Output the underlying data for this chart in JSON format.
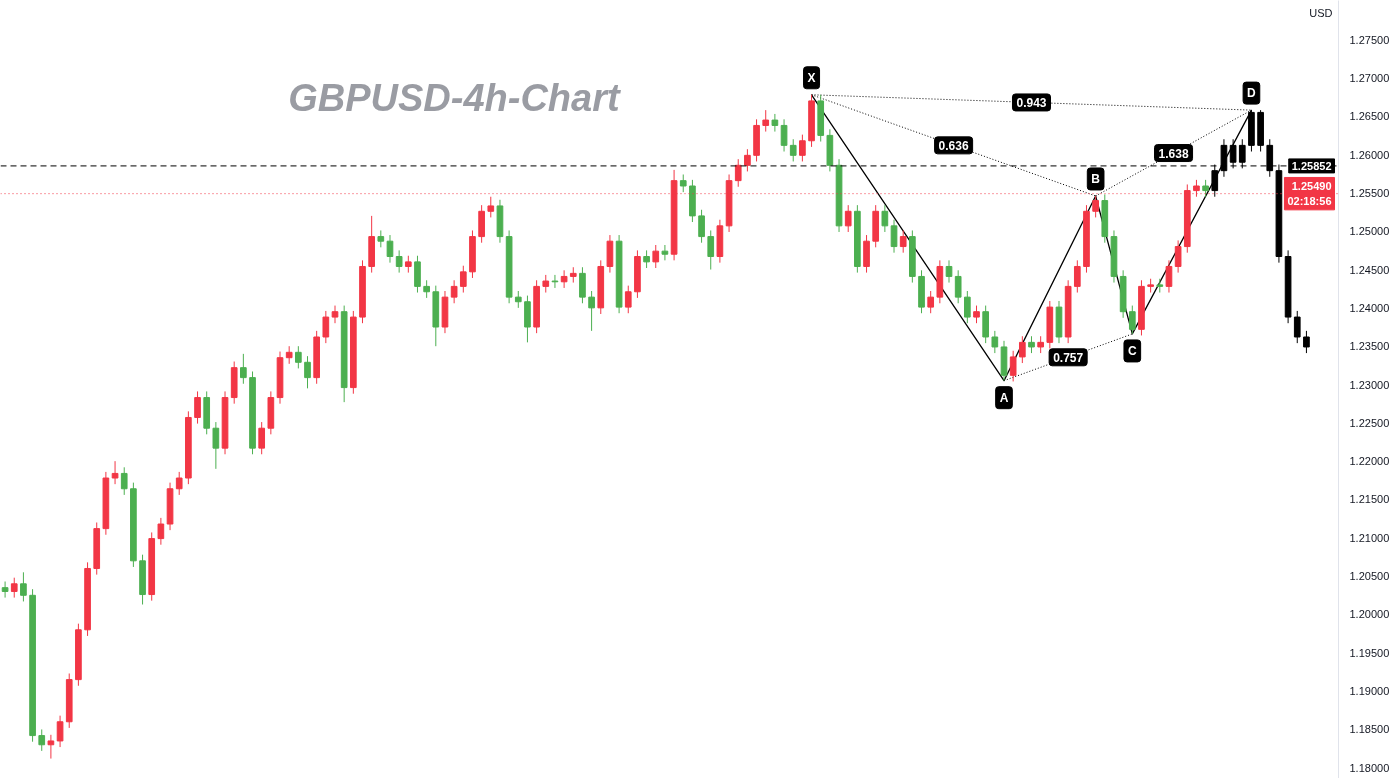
{
  "chart_data": {
    "type": "candlestick",
    "title": "GBPUSD-4h-Chart",
    "ylabel": "USD",
    "tick_labels": "y",
    "categories": [
      null,
      null,
      null,
      null,
      null,
      null,
      null,
      null,
      null,
      null,
      null,
      null,
      null,
      null,
      null,
      null,
      null,
      null,
      null,
      null,
      null,
      null,
      null,
      null,
      null,
      null,
      null,
      null,
      null,
      null,
      null,
      null,
      null,
      null,
      null,
      null,
      null,
      null,
      null,
      null,
      null,
      null,
      null,
      null,
      null,
      null,
      null,
      null,
      null,
      null,
      null,
      null,
      null,
      null,
      null,
      null,
      null,
      null,
      null,
      null,
      null,
      null,
      null,
      null,
      null,
      null,
      null,
      null,
      null,
      null,
      null,
      null,
      null,
      null,
      null,
      null,
      null,
      null,
      null,
      null,
      null,
      null,
      null,
      null,
      null,
      null,
      null,
      null,
      null,
      null,
      null,
      null,
      null,
      null,
      null,
      null,
      null,
      null,
      null,
      null,
      null,
      null,
      null,
      null,
      null,
      null,
      null,
      null,
      null,
      null,
      null,
      null,
      null,
      null,
      null,
      null,
      null,
      null,
      null,
      null,
      null,
      null,
      null,
      null,
      null,
      null,
      null,
      null,
      null,
      null,
      null,
      null,
      null,
      null,
      null,
      null,
      null,
      null,
      null,
      null,
      null,
      null,
      null,
      null,
      null,
      null
    ],
    "ohlc": [
      [
        1.2035,
        1.2043,
        1.2022,
        1.203
      ],
      [
        1.203,
        1.2048,
        1.2022,
        1.204
      ],
      [
        1.204,
        1.2055,
        1.2017,
        1.2025
      ],
      [
        1.2025,
        1.2033,
        1.1834,
        1.1842
      ],
      [
        1.1842,
        1.185,
        1.1822,
        1.183
      ],
      [
        1.183,
        1.1843,
        1.1812,
        1.1835
      ],
      [
        1.1835,
        1.1868,
        1.1827,
        1.186
      ],
      [
        1.186,
        1.1923,
        1.1852,
        1.1915
      ],
      [
        1.1915,
        1.1988,
        1.1907,
        1.198
      ],
      [
        1.198,
        1.2068,
        1.1972,
        1.206
      ],
      [
        1.206,
        1.212,
        1.2052,
        1.2112
      ],
      [
        1.2112,
        1.2186,
        1.2104,
        1.2178
      ],
      [
        1.2178,
        1.22,
        1.217,
        1.2184
      ],
      [
        1.2184,
        1.2192,
        1.2156,
        1.2164
      ],
      [
        1.2164,
        1.2172,
        1.2062,
        1.207
      ],
      [
        1.207,
        1.2078,
        1.2013,
        1.2026
      ],
      [
        1.2026,
        1.2107,
        1.2018,
        1.2099
      ],
      [
        1.2099,
        1.2126,
        1.2091,
        1.2118
      ],
      [
        1.2118,
        1.2172,
        1.211,
        1.2164
      ],
      [
        1.2164,
        1.2186,
        1.2156,
        1.2178
      ],
      [
        1.2178,
        1.2265,
        1.217,
        1.2257
      ],
      [
        1.2257,
        1.2291,
        1.2249,
        1.2283
      ],
      [
        1.2283,
        1.2291,
        1.2235,
        1.2243
      ],
      [
        1.2243,
        1.2251,
        1.219,
        1.2217
      ],
      [
        1.2217,
        1.2291,
        1.2209,
        1.2283
      ],
      [
        1.2283,
        1.233,
        1.2275,
        1.2322
      ],
      [
        1.2322,
        1.234,
        1.2301,
        1.2309
      ],
      [
        1.2309,
        1.2317,
        1.2209,
        1.2217
      ],
      [
        1.2217,
        1.2251,
        1.2209,
        1.2243
      ],
      [
        1.2243,
        1.2291,
        1.2235,
        1.2283
      ],
      [
        1.2283,
        1.2343,
        1.2275,
        1.2335
      ],
      [
        1.2335,
        1.235,
        1.2327,
        1.2342
      ],
      [
        1.2342,
        1.235,
        1.2321,
        1.2329
      ],
      [
        1.2329,
        1.2337,
        1.2295,
        1.2309
      ],
      [
        1.2309,
        1.237,
        1.2301,
        1.2362
      ],
      [
        1.2362,
        1.2396,
        1.2354,
        1.2388
      ],
      [
        1.2388,
        1.2403,
        1.238,
        1.2395
      ],
      [
        1.2395,
        1.2403,
        1.2277,
        1.2296
      ],
      [
        1.2296,
        1.2396,
        1.2288,
        1.2388
      ],
      [
        1.2388,
        1.2462,
        1.238,
        1.2454
      ],
      [
        1.2454,
        1.252,
        1.2446,
        1.2493
      ],
      [
        1.2493,
        1.2501,
        1.2479,
        1.2487
      ],
      [
        1.2487,
        1.2495,
        1.2459,
        1.2467
      ],
      [
        1.2467,
        1.2475,
        1.2446,
        1.2454
      ],
      [
        1.2454,
        1.2468,
        1.2446,
        1.246
      ],
      [
        1.246,
        1.2468,
        1.242,
        1.2428
      ],
      [
        1.2428,
        1.2436,
        1.2413,
        1.2421
      ],
      [
        1.2421,
        1.2429,
        1.235,
        1.2375
      ],
      [
        1.2375,
        1.2422,
        1.2367,
        1.2414
      ],
      [
        1.2414,
        1.2436,
        1.2406,
        1.2428
      ],
      [
        1.2428,
        1.2455,
        1.242,
        1.2447
      ],
      [
        1.2447,
        1.2501,
        1.2439,
        1.2493
      ],
      [
        1.2493,
        1.2534,
        1.2485,
        1.2526
      ],
      [
        1.2526,
        1.2545,
        1.2518,
        1.2533
      ],
      [
        1.2533,
        1.2541,
        1.2485,
        1.2493
      ],
      [
        1.2493,
        1.2501,
        1.2406,
        1.2414
      ],
      [
        1.2414,
        1.2422,
        1.24,
        1.2408
      ],
      [
        1.2408,
        1.2416,
        1.2355,
        1.2375
      ],
      [
        1.2375,
        1.2436,
        1.2367,
        1.2428
      ],
      [
        1.2428,
        1.2443,
        1.242,
        1.2435
      ],
      [
        1.2435,
        1.2443,
        1.2426,
        1.2434
      ],
      [
        1.2434,
        1.2449,
        1.2426,
        1.2441
      ],
      [
        1.2441,
        1.2453,
        1.2433,
        1.2445
      ],
      [
        1.2445,
        1.2453,
        1.2406,
        1.2414
      ],
      [
        1.2414,
        1.2422,
        1.237,
        1.24
      ],
      [
        1.24,
        1.2462,
        1.2392,
        1.2454
      ],
      [
        1.2454,
        1.2495,
        1.2446,
        1.2487
      ],
      [
        1.2487,
        1.2495,
        1.2393,
        1.2401
      ],
      [
        1.2401,
        1.2429,
        1.2393,
        1.2421
      ],
      [
        1.2421,
        1.2475,
        1.2413,
        1.2467
      ],
      [
        1.2467,
        1.2475,
        1.2452,
        1.246
      ],
      [
        1.246,
        1.2482,
        1.2452,
        1.2474
      ],
      [
        1.2474,
        1.2482,
        1.2462,
        1.247
      ],
      [
        1.247,
        1.258,
        1.2462,
        1.2566
      ],
      [
        1.2566,
        1.2574,
        1.2551,
        1.2559
      ],
      [
        1.2559,
        1.2567,
        1.2512,
        1.252
      ],
      [
        1.252,
        1.2528,
        1.2485,
        1.2493
      ],
      [
        1.2493,
        1.2501,
        1.245,
        1.2467
      ],
      [
        1.2467,
        1.2515,
        1.2459,
        1.2507
      ],
      [
        1.2507,
        1.2574,
        1.2499,
        1.2566
      ],
      [
        1.2566,
        1.2594,
        1.2558,
        1.2586
      ],
      [
        1.2586,
        1.2607,
        1.2578,
        1.2599
      ],
      [
        1.2599,
        1.2646,
        1.2591,
        1.2638
      ],
      [
        1.2638,
        1.2658,
        1.263,
        1.2645
      ],
      [
        1.2645,
        1.2653,
        1.263,
        1.2638
      ],
      [
        1.2638,
        1.2646,
        1.2604,
        1.2612
      ],
      [
        1.2612,
        1.262,
        1.2591,
        1.2599
      ],
      [
        1.2599,
        1.2626,
        1.2591,
        1.2618
      ],
      [
        1.2618,
        1.2678,
        1.261,
        1.267
      ],
      [
        1.267,
        1.2678,
        1.2617,
        1.2625
      ],
      [
        1.2625,
        1.2633,
        1.2578,
        1.2586
      ],
      [
        1.2586,
        1.2594,
        1.2499,
        1.2507
      ],
      [
        1.2507,
        1.2534,
        1.2499,
        1.2526
      ],
      [
        1.2526,
        1.2534,
        1.2446,
        1.2454
      ],
      [
        1.2454,
        1.2495,
        1.2446,
        1.2487
      ],
      [
        1.2487,
        1.2534,
        1.2479,
        1.2526
      ],
      [
        1.2526,
        1.2534,
        1.2499,
        1.2507
      ],
      [
        1.2507,
        1.2515,
        1.2472,
        1.248
      ],
      [
        1.248,
        1.2501,
        1.2472,
        1.2493
      ],
      [
        1.2493,
        1.2501,
        1.2433,
        1.2441
      ],
      [
        1.2441,
        1.2449,
        1.2393,
        1.2401
      ],
      [
        1.2401,
        1.2422,
        1.2393,
        1.2414
      ],
      [
        1.2414,
        1.2462,
        1.2406,
        1.2454
      ],
      [
        1.2454,
        1.2462,
        1.2433,
        1.2441
      ],
      [
        1.2441,
        1.2449,
        1.2406,
        1.2414
      ],
      [
        1.2414,
        1.2422,
        1.238,
        1.2388
      ],
      [
        1.2388,
        1.2403,
        1.238,
        1.2395
      ],
      [
        1.2395,
        1.2403,
        1.2354,
        1.2362
      ],
      [
        1.2362,
        1.237,
        1.2341,
        1.2349
      ],
      [
        1.2349,
        1.2357,
        1.2305,
        1.2312
      ],
      [
        1.2312,
        1.2344,
        1.2304,
        1.2336
      ],
      [
        1.2336,
        1.2363,
        1.2328,
        1.2355
      ],
      [
        1.2355,
        1.2363,
        1.2341,
        1.2349
      ],
      [
        1.2349,
        1.2363,
        1.2341,
        1.2355
      ],
      [
        1.2355,
        1.2409,
        1.2347,
        1.2401
      ],
      [
        1.2401,
        1.2409,
        1.2354,
        1.2362
      ],
      [
        1.2362,
        1.2436,
        1.2354,
        1.2428
      ],
      [
        1.2428,
        1.2462,
        1.242,
        1.2454
      ],
      [
        1.2454,
        1.2534,
        1.2446,
        1.2526
      ],
      [
        1.2526,
        1.2546,
        1.2518,
        1.254
      ],
      [
        1.254,
        1.2548,
        1.2485,
        1.2493
      ],
      [
        1.2493,
        1.2501,
        1.2433,
        1.2441
      ],
      [
        1.2441,
        1.2449,
        1.2387,
        1.2395
      ],
      [
        1.2395,
        1.2403,
        1.2366,
        1.2372
      ],
      [
        1.2372,
        1.2436,
        1.2364,
        1.2428
      ],
      [
        1.2428,
        1.2438,
        1.242,
        1.243
      ],
      [
        1.243,
        1.2438,
        1.242,
        1.2428
      ],
      [
        1.2428,
        1.2462,
        1.242,
        1.2454
      ],
      [
        1.2454,
        1.2488,
        1.2446,
        1.248
      ],
      [
        1.248,
        1.2561,
        1.2472,
        1.2553
      ],
      [
        1.2553,
        1.2567,
        1.2545,
        1.2559
      ],
      [
        1.2559,
        1.2567,
        1.2545,
        1.2553
      ],
      [
        1.2553,
        1.2587,
        1.2545,
        1.2579
      ],
      [
        1.2579,
        1.262,
        1.2571,
        1.2612
      ],
      [
        1.2612,
        1.262,
        1.2582,
        1.259
      ],
      [
        1.259,
        1.262,
        1.2582,
        1.2612
      ],
      [
        1.2612,
        1.2658,
        1.2604,
        1.2655
      ],
      [
        1.2655,
        1.2658,
        1.2604,
        1.2612
      ],
      [
        1.2612,
        1.262,
        1.2571,
        1.2579
      ],
      [
        1.2579,
        1.2587,
        1.2459,
        1.2467
      ],
      [
        1.2467,
        1.2475,
        1.238,
        1.2388
      ],
      [
        1.2388,
        1.2396,
        1.2354,
        1.2362
      ],
      [
        1.2362,
        1.237,
        1.2341,
        1.2349
      ],
      null,
      null,
      null
    ],
    "colors": [
      "#4caf50",
      "#f23645",
      "#4caf50",
      "#4caf50",
      "#4caf50",
      "#f23645",
      "#f23645",
      "#f23645",
      "#f23645",
      "#f23645",
      "#f23645",
      "#f23645",
      "#f23645",
      "#4caf50",
      "#4caf50",
      "#4caf50",
      "#f23645",
      "#f23645",
      "#f23645",
      "#f23645",
      "#f23645",
      "#f23645",
      "#4caf50",
      "#4caf50",
      "#f23645",
      "#f23645",
      "#4caf50",
      "#4caf50",
      "#f23645",
      "#f23645",
      "#f23645",
      "#f23645",
      "#4caf50",
      "#4caf50",
      "#f23645",
      "#f23645",
      "#f23645",
      "#4caf50",
      "#f23645",
      "#f23645",
      "#f23645",
      "#4caf50",
      "#4caf50",
      "#4caf50",
      "#f23645",
      "#4caf50",
      "#4caf50",
      "#4caf50",
      "#f23645",
      "#f23645",
      "#f23645",
      "#f23645",
      "#f23645",
      "#f23645",
      "#4caf50",
      "#4caf50",
      "#4caf50",
      "#4caf50",
      "#f23645",
      "#f23645",
      "#4caf50",
      "#f23645",
      "#f23645",
      "#4caf50",
      "#4caf50",
      "#f23645",
      "#f23645",
      "#4caf50",
      "#f23645",
      "#f23645",
      "#4caf50",
      "#f23645",
      "#4caf50",
      "#f23645",
      "#4caf50",
      "#4caf50",
      "#4caf50",
      "#4caf50",
      "#f23645",
      "#f23645",
      "#f23645",
      "#f23645",
      "#f23645",
      "#f23645",
      "#4caf50",
      "#4caf50",
      "#4caf50",
      "#f23645",
      "#f23645",
      "#4caf50",
      "#4caf50",
      "#4caf50",
      "#f23645",
      "#4caf50",
      "#f23645",
      "#f23645",
      "#4caf50",
      "#4caf50",
      "#f23645",
      "#4caf50",
      "#4caf50",
      "#f23645",
      "#f23645",
      "#4caf50",
      "#4caf50",
      "#4caf50",
      "#f23645",
      "#4caf50",
      "#4caf50",
      "#4caf50",
      "#f23645",
      "#f23645",
      "#4caf50",
      "#f23645",
      "#f23645",
      "#4caf50",
      "#f23645",
      "#f23645",
      "#f23645",
      "#f23645",
      "#4caf50",
      "#4caf50",
      "#4caf50",
      "#4caf50",
      "#f23645",
      "#f23645",
      "#4caf50",
      "#f23645",
      "#f23645",
      "#f23645",
      "#f23645",
      "#4caf50",
      "#000000",
      "#000000",
      "#000000",
      "#000000",
      "#000000",
      "#000000",
      "#000000",
      "#000000",
      "#000000",
      "#000000",
      "#000000",
      null,
      null,
      null
    ],
    "ylim": [
      1.1786,
      1.2801
    ],
    "yticks": [
      {
        "value": 1.18,
        "label": "1.18000"
      },
      {
        "value": 1.185,
        "label": "1.18500"
      },
      {
        "value": 1.19,
        "label": "1.19000"
      },
      {
        "value": 1.195,
        "label": "1.19500"
      },
      {
        "value": 1.2,
        "label": "1.20000"
      },
      {
        "value": 1.205,
        "label": "1.20500"
      },
      {
        "value": 1.21,
        "label": "1.21000"
      },
      {
        "value": 1.215,
        "label": "1.21500"
      },
      {
        "value": 1.22,
        "label": "1.22000"
      },
      {
        "value": 1.225,
        "label": "1.22500"
      },
      {
        "value": 1.23,
        "label": "1.23000"
      },
      {
        "value": 1.235,
        "label": "1.23500"
      },
      {
        "value": 1.24,
        "label": "1.24000"
      },
      {
        "value": 1.245,
        "label": "1.24500"
      },
      {
        "value": 1.25,
        "label": "1.25000"
      },
      {
        "value": 1.255,
        "label": "1.25500"
      },
      {
        "value": 1.26,
        "label": "1.26000"
      },
      {
        "value": 1.265,
        "label": "1.26500"
      },
      {
        "value": 1.27,
        "label": "1.27000"
      },
      {
        "value": 1.275,
        "label": "1.27500"
      }
    ],
    "series": [
      {
        "type": "line",
        "color": "#000000",
        "values": [
          null,
          null,
          null,
          null,
          null,
          null,
          null,
          null,
          null,
          null,
          null,
          null,
          null,
          null,
          null,
          null,
          null,
          null,
          null,
          null,
          null,
          null,
          null,
          null,
          null,
          null,
          null,
          null,
          null,
          null,
          null,
          null,
          null,
          null,
          null,
          null,
          null,
          null,
          null,
          null,
          null,
          null,
          null,
          null,
          null,
          null,
          null,
          null,
          null,
          null,
          null,
          null,
          null,
          null,
          null,
          null,
          null,
          null,
          null,
          null,
          null,
          null,
          null,
          null,
          null,
          null,
          null,
          null,
          null,
          null,
          null,
          null,
          null,
          null,
          null,
          null,
          null,
          null,
          null,
          null,
          null,
          null,
          null,
          null,
          null,
          null,
          null,
          null,
          1.2678,
          null,
          null,
          null,
          null,
          null,
          null,
          null,
          null,
          null,
          null,
          null,
          null,
          null,
          null,
          null,
          null,
          null,
          null,
          null,
          null,
          1.2305,
          null,
          null,
          null,
          null,
          null,
          null,
          null,
          null,
          null,
          1.2546,
          null,
          null,
          null,
          1.2366,
          null,
          null,
          null,
          null,
          null,
          null,
          null,
          null,
          null,
          null,
          null,
          null,
          1.2658,
          null,
          null,
          null,
          null,
          null,
          null,
          null,
          null,
          null
        ],
        "value_labels": [
          null,
          null,
          null,
          null,
          null,
          null,
          null,
          null,
          null,
          null,
          null,
          null,
          null,
          null,
          null,
          null,
          null,
          null,
          null,
          null,
          null,
          null,
          null,
          null,
          null,
          null,
          null,
          null,
          null,
          null,
          null,
          null,
          null,
          null,
          null,
          null,
          null,
          null,
          null,
          null,
          null,
          null,
          null,
          null,
          null,
          null,
          null,
          null,
          null,
          null,
          null,
          null,
          null,
          null,
          null,
          null,
          null,
          null,
          null,
          null,
          null,
          null,
          null,
          null,
          null,
          null,
          null,
          null,
          null,
          null,
          null,
          null,
          null,
          null,
          null,
          null,
          null,
          null,
          null,
          null,
          null,
          null,
          null,
          null,
          null,
          null,
          null,
          null,
          "X",
          null,
          null,
          null,
          null,
          null,
          null,
          null,
          null,
          null,
          null,
          null,
          null,
          null,
          null,
          null,
          null,
          null,
          null,
          null,
          null,
          "A",
          null,
          null,
          null,
          null,
          null,
          null,
          null,
          null,
          null,
          "B",
          null,
          null,
          null,
          "C",
          null,
          null,
          null,
          null,
          null,
          null,
          null,
          null,
          null,
          null,
          null,
          null,
          "D",
          null,
          null,
          null,
          null,
          null,
          null,
          null,
          null,
          null
        ]
      }
    ],
    "annotations": [
      "0.943",
      "0.636",
      "1.638",
      "0.757"
    ],
    "ref_lines": [
      {
        "axis": "y",
        "value": 1.25852,
        "label": "1.25852",
        "color": "#000000",
        "line_style": "dashed"
      },
      {
        "axis": "y",
        "value": 1.2549,
        "label": "1.25490\n02:18:56",
        "color": "#f23645",
        "line_style": "dotted"
      }
    ]
  }
}
